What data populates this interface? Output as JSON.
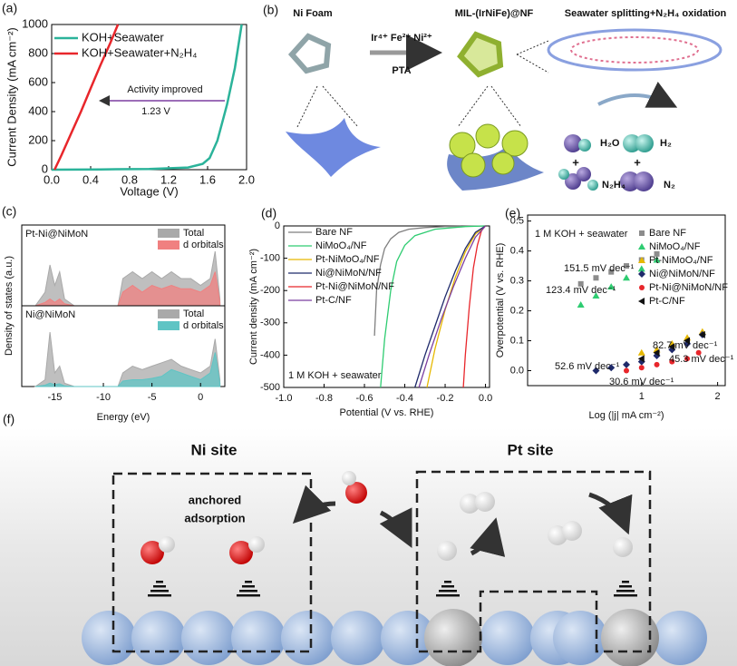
{
  "diagram_b": {
    "panel": "(b)",
    "title_left": "Ni Foam",
    "title_mid": "MIL-(IrNiFe)@NF",
    "title_right": "Seawater splitting+N₂H₄ oxidation",
    "arrow_top": "Ir⁴⁺ Fe²⁺ Ni²⁺",
    "arrow_bottom": "PTA",
    "species": [
      "H₂O",
      "H₂",
      "N₂H₄",
      "N₂"
    ],
    "plus": [
      "+",
      "+"
    ]
  },
  "diagram_f": {
    "panel": "(f)",
    "left_site": "Ni site",
    "right_site": "Pt site",
    "note_lines": [
      "anchored",
      "adsorption"
    ]
  },
  "chart_data": [
    {
      "type": "line",
      "panel": "(a)",
      "xlabel": "Voltage (V)",
      "ylabel": "Current Density (mA cm⁻²)",
      "xlim": [
        0,
        2.0
      ],
      "xticks": [
        {
          "value": 0,
          "label": "0.0"
        },
        0.4,
        0.8,
        1.2,
        1.6,
        {
          "value": 2,
          "label": "2.0"
        }
      ],
      "ylim": [
        0,
        1000
      ],
      "yticks": [
        0,
        200,
        400,
        600,
        800,
        1000
      ],
      "annotations": [
        "Activity improved",
        "1.23 V"
      ],
      "series": [
        {
          "name": "KOH+Seawater",
          "color": "#2bb39a",
          "x": [
            0,
            0.5,
            1.0,
            1.4,
            1.55,
            1.62,
            1.7,
            1.8,
            1.88,
            1.95
          ],
          "values": [
            0,
            2,
            5,
            15,
            40,
            80,
            200,
            450,
            700,
            1000
          ]
        },
        {
          "name": "KOH+Seawater+N₂H₄",
          "color": "#e8262b",
          "x": [
            0.03,
            0.1,
            0.2,
            0.3,
            0.4,
            0.5,
            0.6,
            0.68
          ],
          "values": [
            0,
            100,
            250,
            400,
            560,
            720,
            870,
            1000
          ]
        }
      ]
    },
    {
      "type": "area",
      "panel": "(c)",
      "xlabel": "Energy (eV)",
      "ylabel": "Density of states (a.u.)",
      "xlim": [
        -18.4,
        2.5
      ],
      "xticks": [
        -15,
        -10,
        -5,
        0
      ],
      "x": [
        -17,
        -16,
        -15.5,
        -15,
        -14.5,
        -14,
        -13,
        -10,
        -8.5,
        -8,
        -7,
        -6,
        -5,
        -4,
        -3,
        -2,
        -1,
        0,
        1,
        1.5,
        2
      ],
      "subplots": [
        {
          "label": "Pt-Ni@NiMoN",
          "ylim": [
            0,
            10
          ],
          "series": [
            {
              "name": "Total",
              "color": "#a9a9a9",
              "values": [
                0,
                2,
                6,
                3,
                5,
                1,
                0,
                0,
                0,
                4,
                5,
                4,
                5,
                4,
                5,
                4,
                4,
                3,
                4,
                8,
                1
              ]
            },
            {
              "name": "d orbitals",
              "color": "#f08080",
              "values": [
                0,
                0.5,
                1,
                0.5,
                1,
                0.3,
                0,
                0,
                0,
                2,
                3,
                2,
                3,
                2.5,
                3,
                2.5,
                2.5,
                2,
                3,
                5,
                0.5
              ]
            }
          ]
        },
        {
          "label": "Ni@NiMoN",
          "ylim": [
            0,
            10
          ],
          "series": [
            {
              "name": "Total",
              "color": "#a9a9a9",
              "values": [
                0,
                1,
                8,
                2,
                3,
                0.5,
                0,
                0,
                0,
                2,
                3,
                2.5,
                3,
                3.5,
                4,
                3,
                2.5,
                2,
                3,
                7,
                1
              ]
            },
            {
              "name": "d orbitals",
              "color": "#5fc4c4",
              "values": [
                0,
                0.2,
                0.5,
                0.3,
                0.4,
                0.1,
                0,
                0,
                0,
                0.8,
                1,
                1,
                1.2,
                1.5,
                2.5,
                2,
                1.5,
                1,
                2,
                5,
                0.5
              ]
            }
          ]
        }
      ]
    },
    {
      "type": "line",
      "panel": "(d)",
      "xlabel": "Potential (V vs. RHE)",
      "ylabel": "Current density (mA cm⁻²)",
      "xlim": [
        -1.0,
        0.02
      ],
      "xticks": [
        {
          "value": -1,
          "label": "-1.0"
        },
        -0.8,
        -0.6,
        -0.4,
        -0.2,
        {
          "value": 0,
          "label": "0.0"
        }
      ],
      "ylim": [
        -500,
        0
      ],
      "yticks": [
        0,
        -100,
        -200,
        -300,
        -400,
        -500
      ],
      "annotations": [
        "1 M KOH + seawater"
      ],
      "series": [
        {
          "name": "Bare NF",
          "color": "#7f7f7f",
          "x": [
            -0.55,
            -0.54,
            -0.52,
            -0.5,
            -0.47,
            -0.43,
            -0.38,
            -0.3,
            -0.2,
            -0.1,
            0
          ],
          "values": [
            -340,
            -200,
            -120,
            -70,
            -40,
            -20,
            -10,
            -5,
            -2,
            -1,
            0
          ]
        },
        {
          "name": "NiMoO₄/NF",
          "color": "#2ecc71",
          "x": [
            -0.52,
            -0.5,
            -0.47,
            -0.44,
            -0.4,
            -0.35,
            -0.25,
            -0.1,
            0
          ],
          "values": [
            -500,
            -350,
            -200,
            -110,
            -60,
            -30,
            -10,
            -2,
            0
          ]
        },
        {
          "name": "Pt-NiMoO₄/NF",
          "color": "#e6b800",
          "x": [
            -0.29,
            -0.25,
            -0.2,
            -0.15,
            -0.1,
            -0.05,
            0
          ],
          "values": [
            -500,
            -380,
            -260,
            -160,
            -80,
            -25,
            0
          ]
        },
        {
          "name": "Ni@NiMoN/NF",
          "color": "#1f2a6b",
          "x": [
            -0.35,
            -0.3,
            -0.25,
            -0.2,
            -0.15,
            -0.1,
            -0.05,
            0
          ],
          "values": [
            -500,
            -400,
            -310,
            -220,
            -140,
            -70,
            -20,
            0
          ]
        },
        {
          "name": "Pt-Ni@NiMoN/NF",
          "color": "#e8262b",
          "x": [
            -0.11,
            -0.1,
            -0.08,
            -0.06,
            -0.04,
            -0.02,
            0
          ],
          "values": [
            -500,
            -400,
            -250,
            -130,
            -60,
            -15,
            0
          ]
        },
        {
          "name": "Pt-C/NF",
          "color": "#7b3fa0",
          "x": [
            -0.33,
            -0.28,
            -0.22,
            -0.16,
            -0.1,
            -0.05,
            0
          ],
          "values": [
            -500,
            -400,
            -290,
            -190,
            -100,
            -35,
            0
          ]
        }
      ]
    },
    {
      "type": "scatter",
      "panel": "(e)",
      "xlabel": "Log (|j| mA cm⁻²)",
      "ylabel": "Overpotential (V vs. RHE)",
      "xlim": [
        -0.5,
        2.1
      ],
      "xticks": [
        1,
        2
      ],
      "ylim": [
        -0.05,
        0.52
      ],
      "yticks": [
        {
          "value": 0,
          "label": "0.0"
        },
        0.1,
        0.2,
        0.3,
        0.4,
        0.5
      ],
      "annotations": [
        {
          "text": "1 M KOH + seawater",
          "color": "#111"
        },
        {
          "text": "151.5 mV dec⁻¹",
          "color": "#8c8c8c"
        },
        {
          "text": "123.4 mV dec⁻¹",
          "color": "#2ecc71"
        },
        {
          "text": "82.7 mV dec⁻¹",
          "color": "#e6b800"
        },
        {
          "text": "45.3 mV dec⁻¹",
          "color": "#111"
        },
        {
          "text": "52.6 mV dec⁻¹",
          "color": "#1f2a6b"
        },
        {
          "text": "30.6 mV dec⁻¹",
          "color": "#e8262b"
        }
      ],
      "series": [
        {
          "name": "Bare NF",
          "color": "#8c8c8c",
          "marker": "square",
          "x": [
            0.2,
            0.4,
            0.6,
            0.8,
            1.0,
            1.2
          ],
          "values": [
            0.29,
            0.31,
            0.33,
            0.35,
            0.37,
            0.39
          ]
        },
        {
          "name": "NiMoO₄/NF",
          "color": "#2ecc71",
          "marker": "triangle",
          "x": [
            0.2,
            0.4,
            0.6,
            0.8,
            1.0,
            1.2
          ],
          "values": [
            0.22,
            0.25,
            0.28,
            0.31,
            0.34,
            0.37
          ]
        },
        {
          "name": "Pt-NiMoO₄/NF",
          "color": "#e6b800",
          "marker": "triangle",
          "x": [
            1.0,
            1.2,
            1.4,
            1.6,
            1.8
          ],
          "values": [
            0.06,
            0.07,
            0.09,
            0.11,
            0.13
          ]
        },
        {
          "name": "Ni@NiMoN/NF",
          "color": "#1f2a6b",
          "marker": "diamond",
          "x": [
            0.4,
            0.6,
            0.8,
            1.0,
            1.2,
            1.4,
            1.6,
            1.8
          ],
          "values": [
            0.0,
            0.01,
            0.02,
            0.03,
            0.05,
            0.07,
            0.09,
            0.12
          ]
        },
        {
          "name": "Pt-Ni@NiMoN/NF",
          "color": "#e8262b",
          "marker": "circle",
          "x": [
            0.8,
            1.0,
            1.2,
            1.4,
            1.6,
            1.75
          ],
          "values": [
            0.0,
            0.01,
            0.02,
            0.03,
            0.04,
            0.06
          ]
        },
        {
          "name": "Pt-C/NF",
          "color": "#111111",
          "marker": "left",
          "x": [
            1.0,
            1.2,
            1.4,
            1.6,
            1.8
          ],
          "values": [
            0.04,
            0.06,
            0.08,
            0.1,
            0.12
          ]
        }
      ]
    }
  ]
}
